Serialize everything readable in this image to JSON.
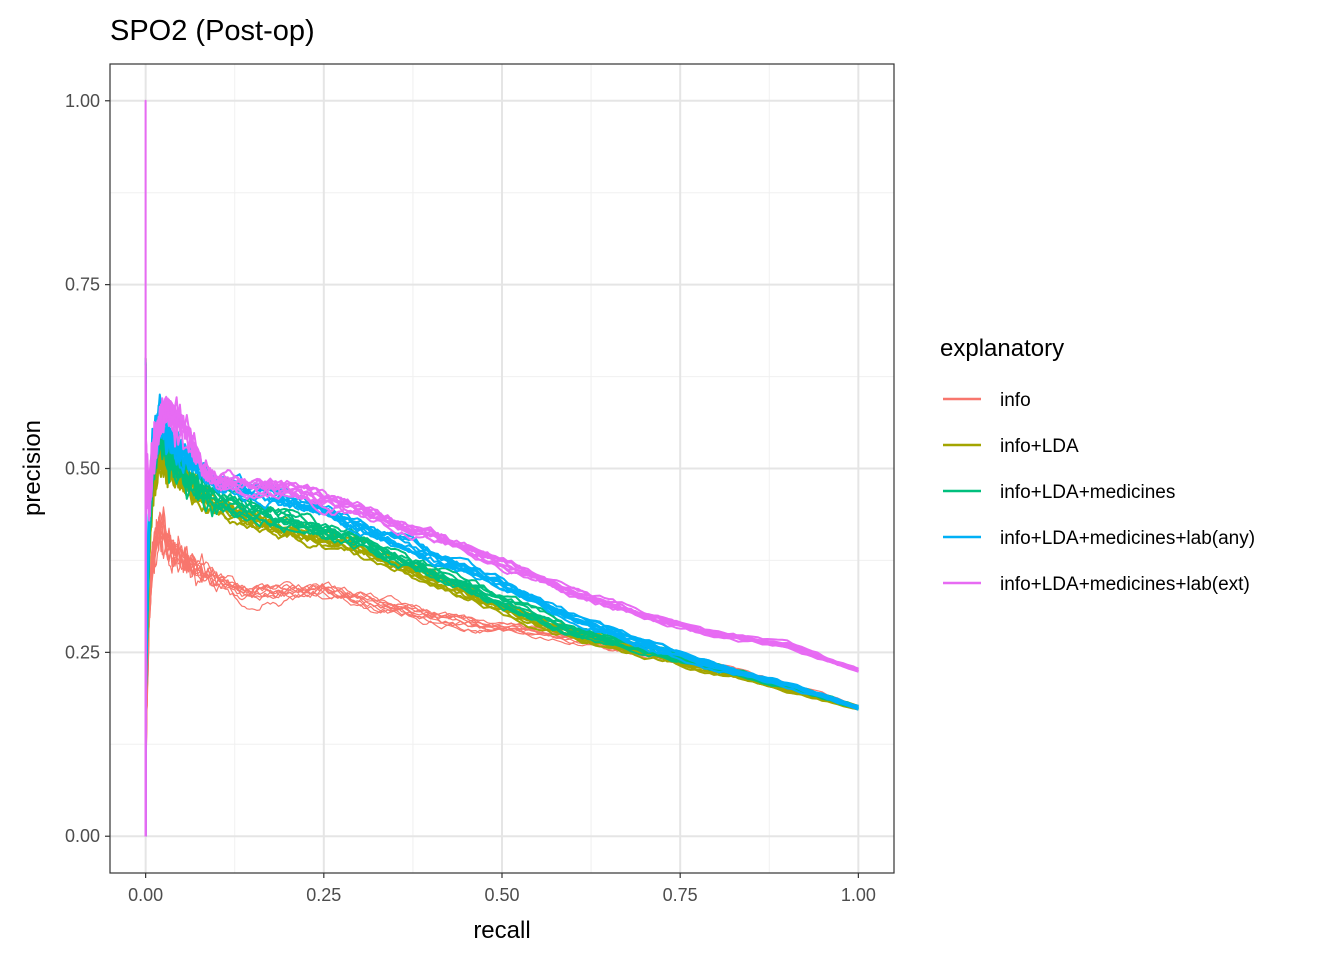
{
  "chart_data": {
    "type": "line",
    "title": "SPO2 (Post-op)",
    "xlabel": "recall",
    "ylabel": "precision",
    "xlim": [
      -0.05,
      1.05
    ],
    "ylim": [
      -0.05,
      1.05
    ],
    "x_ticks": [
      "0.00",
      "0.25",
      "0.50",
      "0.75",
      "1.00"
    ],
    "y_ticks": [
      "0.00",
      "0.25",
      "0.50",
      "0.75",
      "1.00"
    ],
    "grid": true,
    "legend": {
      "title": "explanatory",
      "position": "right"
    },
    "runs_per_series": 10,
    "series": [
      {
        "name": "info",
        "color": "#F8766D",
        "x": [
          0,
          0.005,
          0.01,
          0.02,
          0.03,
          0.05,
          0.08,
          0.1,
          0.12,
          0.15,
          0.2,
          0.25,
          0.3,
          0.4,
          0.5,
          0.6,
          0.7,
          0.8,
          0.9,
          1.0
        ],
        "y": [
          0.1,
          0.3,
          0.38,
          0.42,
          0.4,
          0.38,
          0.36,
          0.35,
          0.34,
          0.33,
          0.33,
          0.335,
          0.325,
          0.3,
          0.28,
          0.27,
          0.25,
          0.23,
          0.205,
          0.175
        ]
      },
      {
        "name": "info+LDA",
        "color": "#A3A500",
        "x": [
          0,
          0.005,
          0.01,
          0.02,
          0.03,
          0.05,
          0.08,
          0.1,
          0.15,
          0.2,
          0.25,
          0.3,
          0.4,
          0.5,
          0.6,
          0.7,
          0.8,
          0.9,
          1.0
        ],
        "y": [
          0.2,
          0.4,
          0.48,
          0.52,
          0.5,
          0.49,
          0.46,
          0.45,
          0.43,
          0.415,
          0.405,
          0.39,
          0.35,
          0.31,
          0.275,
          0.25,
          0.225,
          0.2,
          0.175
        ]
      },
      {
        "name": "info+LDA+medicines",
        "color": "#00BF7D",
        "x": [
          0,
          0.005,
          0.01,
          0.02,
          0.03,
          0.05,
          0.08,
          0.1,
          0.15,
          0.2,
          0.25,
          0.3,
          0.4,
          0.5,
          0.6,
          0.7,
          0.8,
          0.9,
          1.0
        ],
        "y": [
          0.2,
          0.42,
          0.5,
          0.55,
          0.52,
          0.5,
          0.47,
          0.46,
          0.445,
          0.43,
          0.415,
          0.4,
          0.36,
          0.32,
          0.28,
          0.255,
          0.23,
          0.205,
          0.175
        ]
      },
      {
        "name": "info+LDA+medicines+lab(any)",
        "color": "#00B0F6",
        "x": [
          0,
          0.005,
          0.01,
          0.02,
          0.03,
          0.05,
          0.08,
          0.1,
          0.15,
          0.2,
          0.25,
          0.3,
          0.4,
          0.5,
          0.6,
          0.7,
          0.8,
          0.9,
          1.0
        ],
        "y": [
          0.2,
          0.45,
          0.52,
          0.57,
          0.54,
          0.52,
          0.49,
          0.475,
          0.47,
          0.455,
          0.44,
          0.42,
          0.38,
          0.34,
          0.295,
          0.26,
          0.23,
          0.205,
          0.175
        ]
      },
      {
        "name": "info+LDA+medicines+lab(ext)",
        "color": "#E76BF3",
        "x": [
          0,
          0.005,
          0.01,
          0.02,
          0.03,
          0.05,
          0.08,
          0.1,
          0.15,
          0.2,
          0.25,
          0.3,
          0.4,
          0.5,
          0.6,
          0.7,
          0.8,
          0.9,
          1.0
        ],
        "y": [
          0.5,
          0.45,
          0.52,
          0.56,
          0.58,
          0.56,
          0.5,
          0.48,
          0.475,
          0.47,
          0.455,
          0.44,
          0.41,
          0.37,
          0.33,
          0.3,
          0.275,
          0.26,
          0.225
        ]
      }
    ]
  }
}
